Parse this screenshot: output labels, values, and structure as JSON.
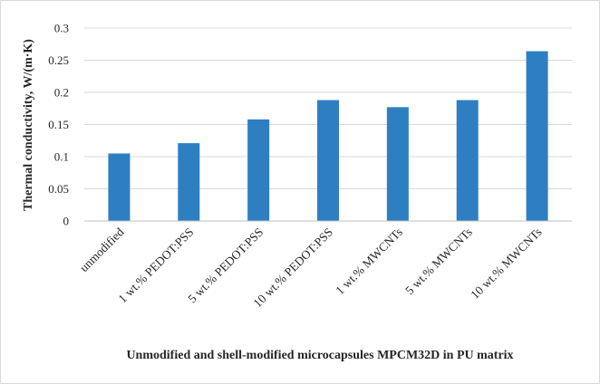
{
  "chart_data": {
    "type": "bar",
    "title": "",
    "xlabel": "Unmodified and shell-modified microcapsules MPCM32D in PU matrix",
    "ylabel": "Thermal conductivity, W/(m·K)",
    "ylim": [
      0,
      0.3
    ],
    "yticks": [
      "0",
      "0.05",
      "0.1",
      "0.15",
      "0.2",
      "0.25",
      "0.3"
    ],
    "ytick_values": [
      0,
      0.05,
      0.1,
      0.15,
      0.2,
      0.25,
      0.3
    ],
    "grid": true,
    "categories": [
      "unmodified",
      "1 wt.% PEDOT:PSS",
      "5 wt.% PEDOT:PSS",
      "10 wt.% PEDOT:PSS",
      "1 wt.% MWCNTs",
      "5 wt.% MWCNTs",
      "10 wt.% MWCNTs"
    ],
    "values": [
      0.105,
      0.121,
      0.158,
      0.188,
      0.177,
      0.188,
      0.264
    ],
    "bar_color": "#2e7fc2",
    "grid_color": "#d9d9d9",
    "axis_color": "#bfbfbf"
  }
}
